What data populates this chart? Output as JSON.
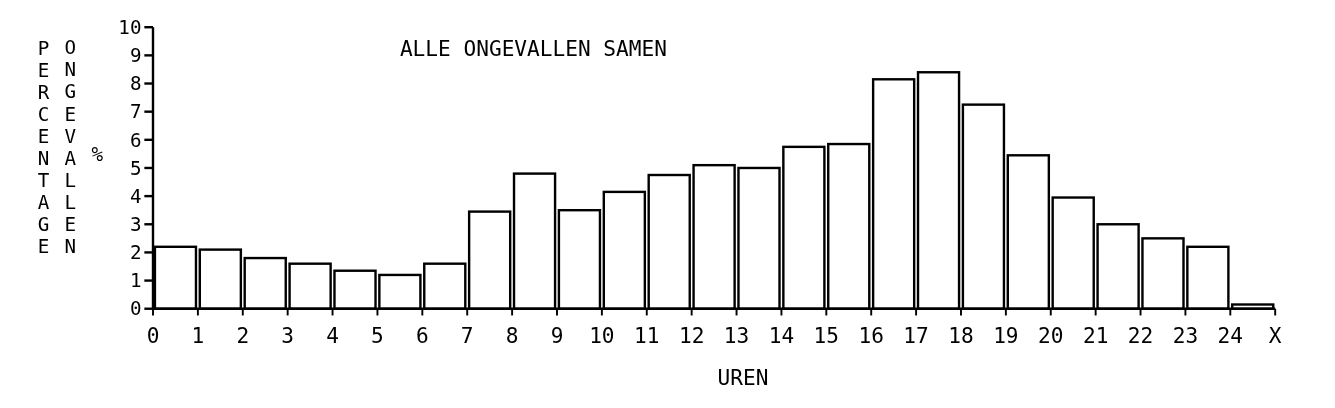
{
  "chart_data": {
    "type": "histogram",
    "title": "ALLE ONGEVALLEN SAMEN",
    "xlabel": "UREN",
    "ylabel": "PERCENTAGE ONGEVALLEN %",
    "bins": [
      0,
      1,
      2,
      3,
      4,
      5,
      6,
      7,
      8,
      9,
      10,
      11,
      12,
      13,
      14,
      15,
      16,
      17,
      18,
      19,
      20,
      21,
      22,
      23,
      24,
      25
    ],
    "values": [
      2.2,
      2.1,
      1.8,
      1.6,
      1.35,
      1.2,
      1.6,
      3.45,
      4.8,
      3.5,
      4.15,
      4.75,
      5.1,
      5.0,
      5.75,
      5.85,
      8.15,
      8.4,
      7.25,
      5.45,
      3.95,
      3.0,
      2.5,
      2.2,
      0.15
    ],
    "color": "#ffffff",
    "xlim": [
      0,
      25
    ],
    "xticks": [
      0,
      1,
      2,
      3,
      4,
      5,
      6,
      7,
      8,
      9,
      10,
      11,
      12,
      13,
      14,
      15,
      16,
      17,
      18,
      19,
      20,
      21,
      22,
      23,
      24,
      {
        "value": 25,
        "label": "X"
      }
    ],
    "ylim": [
      0,
      10
    ],
    "yticks": [
      0,
      1,
      2,
      3,
      4,
      5,
      6,
      7,
      8,
      9,
      10
    ],
    "grid": false,
    "legend": false
  }
}
